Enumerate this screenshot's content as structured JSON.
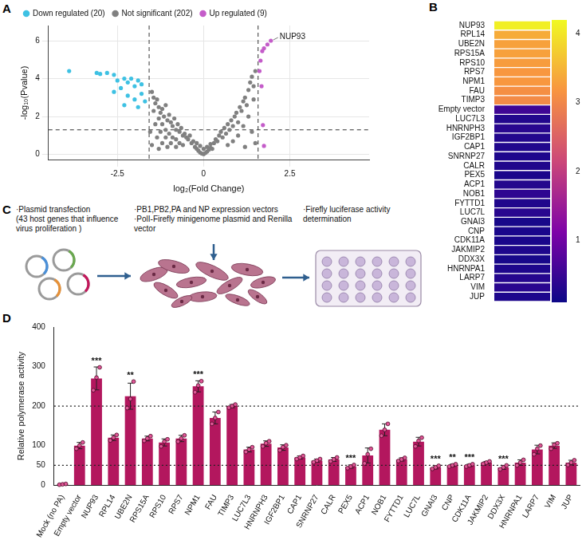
{
  "chart_data": [
    {
      "panel": "A",
      "type": "scatter",
      "x_label": "log₂(Fold Change)",
      "y_label": "-log₁₀(Pvalue)",
      "xlim": [
        -4.5,
        4.8
      ],
      "xticks": [
        -2.5,
        0,
        2.5
      ],
      "ylim": [
        -0.3,
        6.8
      ],
      "yticks": [
        0,
        2,
        4,
        6
      ],
      "grid": true,
      "legend": "top",
      "vlines": [
        -1.58,
        1.58
      ],
      "hline": 1.3,
      "annotations": [
        {
          "text": "NUP93",
          "x": 1.95,
          "y": 6.0
        }
      ],
      "series": [
        {
          "name": "Down regulated (20)",
          "color": "#3ec1e3",
          "marker": "circle",
          "points": [
            [
              -3.9,
              4.4
            ],
            [
              -3.1,
              4.3
            ],
            [
              -3.0,
              4.25
            ],
            [
              -2.8,
              4.3
            ],
            [
              -2.6,
              4.2
            ],
            [
              -2.5,
              3.9
            ],
            [
              -2.3,
              4.0
            ],
            [
              -2.2,
              3.8
            ],
            [
              -2.1,
              4.0
            ],
            [
              -2.0,
              3.6
            ],
            [
              -1.9,
              3.9
            ],
            [
              -1.8,
              3.7
            ],
            [
              -2.4,
              3.5
            ],
            [
              -2.6,
              3.3
            ],
            [
              -2.2,
              3.1
            ],
            [
              -1.8,
              3.2
            ],
            [
              -2.0,
              2.9
            ],
            [
              -1.7,
              2.8
            ],
            [
              -2.3,
              2.6
            ],
            [
              -1.9,
              2.5
            ]
          ]
        },
        {
          "name": "Not significant (202)",
          "color": "#808080",
          "marker": "circle",
          "points": [
            [
              -1.5,
              3.3
            ],
            [
              -1.45,
              3.0
            ],
            [
              -1.4,
              2.7
            ],
            [
              -1.35,
              2.9
            ],
            [
              -1.3,
              2.5
            ],
            [
              -1.25,
              2.2
            ],
            [
              -1.2,
              2.4
            ],
            [
              -1.15,
              2.0
            ],
            [
              -1.1,
              2.6
            ],
            [
              -1.05,
              1.8
            ],
            [
              -1.0,
              2.1
            ],
            [
              -0.95,
              1.7
            ],
            [
              -0.9,
              1.5
            ],
            [
              -0.85,
              1.9
            ],
            [
              -0.8,
              1.3
            ],
            [
              -0.75,
              1.6
            ],
            [
              -0.7,
              1.2
            ],
            [
              -0.65,
              1.4
            ],
            [
              -0.6,
              1.0
            ],
            [
              -0.55,
              1.1
            ],
            [
              -0.5,
              0.9
            ],
            [
              -0.45,
              0.8
            ],
            [
              -0.4,
              1.0
            ],
            [
              -0.35,
              0.6
            ],
            [
              -0.3,
              0.7
            ],
            [
              -1.45,
              2.3
            ],
            [
              -1.3,
              1.9
            ],
            [
              -1.2,
              1.6
            ],
            [
              -1.1,
              1.3
            ],
            [
              -1.0,
              1.1
            ],
            [
              -0.9,
              0.9
            ],
            [
              -0.8,
              0.8
            ],
            [
              -0.7,
              0.6
            ],
            [
              -0.6,
              0.5
            ],
            [
              -1.4,
              1.6
            ],
            [
              -1.25,
              1.2
            ],
            [
              -1.1,
              0.9
            ],
            [
              -0.95,
              0.6
            ],
            [
              -0.8,
              0.4
            ],
            [
              -1.55,
              1.2
            ],
            [
              -1.35,
              0.9
            ],
            [
              -1.2,
              0.6
            ],
            [
              -1.05,
              0.4
            ],
            [
              -1.5,
              0.5
            ],
            [
              -1.3,
              0.3
            ],
            [
              -0.25,
              0.4
            ],
            [
              -0.2,
              0.3
            ],
            [
              -0.15,
              0.2
            ],
            [
              -0.1,
              0.1
            ],
            [
              -0.05,
              0.05
            ],
            [
              0.0,
              0.02
            ],
            [
              0.05,
              0.08
            ],
            [
              0.1,
              0.15
            ],
            [
              0.15,
              0.25
            ],
            [
              0.2,
              0.35
            ],
            [
              0.25,
              0.3
            ],
            [
              -0.2,
              0.6
            ],
            [
              0.2,
              0.55
            ],
            [
              0.0,
              0.3
            ],
            [
              -0.1,
              0.45
            ],
            [
              0.1,
              0.4
            ],
            [
              0.3,
              0.6
            ],
            [
              0.35,
              0.8
            ],
            [
              0.4,
              0.7
            ],
            [
              0.45,
              1.0
            ],
            [
              0.5,
              1.2
            ],
            [
              0.55,
              0.9
            ],
            [
              0.6,
              1.4
            ],
            [
              0.65,
              1.1
            ],
            [
              0.7,
              1.6
            ],
            [
              0.75,
              1.3
            ],
            [
              0.8,
              1.8
            ],
            [
              0.85,
              1.5
            ],
            [
              0.9,
              2.0
            ],
            [
              0.95,
              2.2
            ],
            [
              1.0,
              1.7
            ],
            [
              1.05,
              2.5
            ],
            [
              1.1,
              2.3
            ],
            [
              1.15,
              2.8
            ],
            [
              1.2,
              3.0
            ],
            [
              1.25,
              2.6
            ],
            [
              1.3,
              3.4
            ],
            [
              1.35,
              3.8
            ],
            [
              1.4,
              4.1
            ],
            [
              1.45,
              3.6
            ],
            [
              1.5,
              4.4
            ],
            [
              1.45,
              2.9
            ],
            [
              1.3,
              2.0
            ],
            [
              1.15,
              1.5
            ],
            [
              1.0,
              1.0
            ],
            [
              0.85,
              0.7
            ],
            [
              0.7,
              0.5
            ],
            [
              1.4,
              1.2
            ],
            [
              1.5,
              0.6
            ],
            [
              1.2,
              0.4
            ]
          ]
        },
        {
          "name": "Up regulated (9)",
          "color": "#c45cc9",
          "marker": "circle",
          "points": [
            [
              1.95,
              6.0
            ],
            [
              1.85,
              5.8
            ],
            [
              1.75,
              5.6
            ],
            [
              1.7,
              5.45
            ],
            [
              1.65,
              4.95
            ],
            [
              1.62,
              4.4
            ],
            [
              1.68,
              3.6
            ],
            [
              1.72,
              1.55
            ],
            [
              1.75,
              0.45
            ]
          ]
        }
      ]
    },
    {
      "panel": "B",
      "type": "heatmap",
      "categories": [
        "NUP93",
        "RPL14",
        "UBE2N",
        "RPS15A",
        "RPS10",
        "RPS7",
        "NPM1",
        "FAU",
        "TIMP3",
        "Empty vector",
        "LUC7L3",
        "HNRNPH3",
        "IGF2BP1",
        "CAP1",
        "SNRNP27",
        "CALR",
        "PEX5",
        "ACP1",
        "NOB1",
        "FYTTD1",
        "LUC7L",
        "GNAI3",
        "CNP",
        "CDK11A",
        "JAKMIP2",
        "DDX3X",
        "HNRNPA1",
        "LARP7",
        "VIM",
        "JUP"
      ],
      "values": [
        4.1,
        3.4,
        3.3,
        3.3,
        3.25,
        3.2,
        3.2,
        3.1,
        3.05,
        0.55,
        0.3,
        0.35,
        0.3,
        0.28,
        0.25,
        0.27,
        0.22,
        0.3,
        0.4,
        0.27,
        0.35,
        0.2,
        0.22,
        0.22,
        0.25,
        0.2,
        0.25,
        0.32,
        0.35,
        0.25
      ],
      "colorbar": {
        "range": [
          0.1,
          4.2
        ],
        "ticks": [
          1,
          2,
          3,
          4
        ]
      }
    },
    {
      "panel": "D",
      "type": "bar",
      "y_label": "Relative polymerase activity",
      "color": "#b3175e",
      "ylim": [
        0,
        400
      ],
      "yticks": [
        0,
        50,
        100,
        200,
        300,
        400
      ],
      "hlines": [
        50,
        200
      ],
      "categories": [
        "Mock (no PA)",
        "Empty vector",
        "NUP93",
        "RPL14",
        "UBE2N",
        "RPS15A",
        "RPS10",
        "RPS7",
        "NPM1",
        "FAU",
        "TIMP3",
        "LUC7L3",
        "HNRNPH3",
        "IGF2BP1",
        "CAP1",
        "SNRNP27",
        "CALR",
        "PEX5",
        "ACP1",
        "NOB1",
        "FYTTD1",
        "LUC7L",
        "GNAI3",
        "CNP",
        "CDK11A",
        "JAKMIP2",
        "DDX3X",
        "HNRNPA1",
        "LARP7",
        "VIM",
        "JUP"
      ],
      "values": [
        2,
        100,
        270,
        120,
        225,
        118,
        108,
        118,
        250,
        170,
        200,
        90,
        105,
        95,
        70,
        62,
        65,
        47,
        75,
        140,
        65,
        110,
        45,
        50,
        50,
        57,
        45,
        57,
        90,
        100,
        57
      ],
      "errors": [
        1,
        8,
        29,
        7,
        33,
        6,
        9,
        8,
        14,
        15,
        4,
        6,
        7,
        7,
        4,
        4,
        5,
        4,
        19,
        15,
        4,
        11,
        4,
        3,
        3,
        3,
        5,
        7,
        11,
        7,
        6
      ],
      "replicates": [
        [
          1,
          2,
          3
        ],
        [
          92,
          100,
          108
        ],
        [
          240,
          272,
          298
        ],
        [
          113,
          120,
          127
        ],
        [
          195,
          218,
          262
        ],
        [
          112,
          118,
          124
        ],
        [
          98,
          110,
          116
        ],
        [
          110,
          118,
          126
        ],
        [
          235,
          252,
          263
        ],
        [
          155,
          170,
          185
        ],
        [
          196,
          200,
          204
        ],
        [
          84,
          90,
          96
        ],
        [
          98,
          106,
          111
        ],
        [
          88,
          96,
          101
        ],
        [
          66,
          70,
          74
        ],
        [
          58,
          62,
          66
        ],
        [
          60,
          65,
          70
        ],
        [
          43,
          47,
          51
        ],
        [
          55,
          78,
          92
        ],
        [
          125,
          140,
          155
        ],
        [
          61,
          65,
          69
        ],
        [
          98,
          112,
          120
        ],
        [
          41,
          45,
          49
        ],
        [
          47,
          50,
          53
        ],
        [
          47,
          50,
          53
        ],
        [
          54,
          57,
          60
        ],
        [
          40,
          45,
          50
        ],
        [
          50,
          57,
          64
        ],
        [
          78,
          92,
          100
        ],
        [
          92,
          102,
          106
        ],
        [
          51,
          57,
          63
        ]
      ],
      "significance": [
        null,
        null,
        "***",
        null,
        "**",
        null,
        null,
        null,
        "***",
        null,
        null,
        null,
        null,
        null,
        null,
        null,
        null,
        "***",
        null,
        null,
        null,
        null,
        "***",
        "**",
        "***",
        null,
        "***",
        null,
        null,
        null,
        null
      ]
    }
  ],
  "diagram": {
    "panel": "C",
    "steps": [
      {
        "lines": [
          "·Plasmid transfection",
          "(43 host genes that influence virus proliferation )"
        ]
      },
      {
        "lines": [
          "·PB1,PB2,PA and NP expression vectors",
          "·PolI-Firefly minigenome plasmid and Renilla vector"
        ]
      },
      {
        "lines": [
          "·Firefly luciferase activity determination"
        ]
      }
    ]
  }
}
